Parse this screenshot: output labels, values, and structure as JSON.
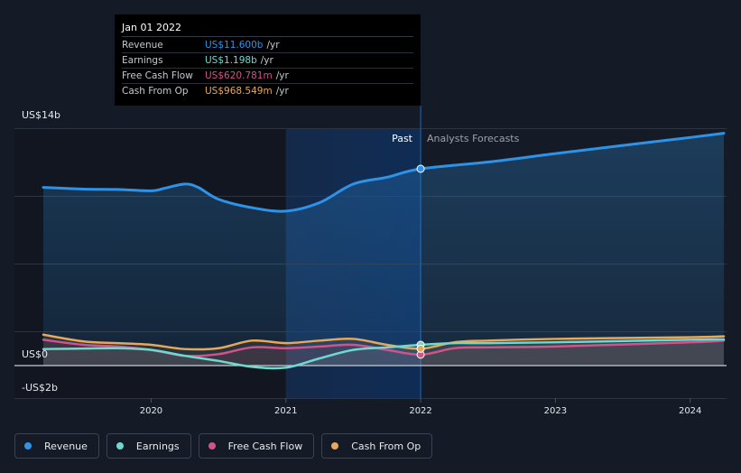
{
  "tooltip": {
    "date": "Jan 01 2022",
    "rows": [
      {
        "label": "Revenue",
        "value": "US$11.600b",
        "unit": "/yr",
        "color": "#2e93e6"
      },
      {
        "label": "Earnings",
        "value": "US$1.198b",
        "unit": "/yr",
        "color": "#6dd9cf"
      },
      {
        "label": "Free Cash Flow",
        "value": "US$620.781m",
        "unit": "/yr",
        "color": "#d0538c"
      },
      {
        "label": "Cash From Op",
        "value": "US$968.549m",
        "unit": "/yr",
        "color": "#e6a85a"
      }
    ]
  },
  "chart_data": {
    "type": "line",
    "x_ticks": [
      "2020",
      "2021",
      "2022",
      "2023",
      "2024"
    ],
    "y_ticks": [
      {
        "value": 14,
        "label": "US$14b"
      },
      {
        "value": 0,
        "label": "US$0"
      },
      {
        "value": -2,
        "label": "-US$2b"
      }
    ],
    "ylim": [
      -2,
      14
    ],
    "xlim": [
      2019.2,
      2024.27
    ],
    "past_label": "Past",
    "forecast_label": "Analysts Forecasts",
    "forecast_start": 2022.0,
    "highlight_range": [
      2021.0,
      2022.0
    ],
    "series": [
      {
        "name": "Revenue",
        "color": "#2e93e6",
        "points": [
          [
            2019.2,
            10.5
          ],
          [
            2019.5,
            10.4
          ],
          [
            2019.75,
            10.38
          ],
          [
            2020.0,
            10.3
          ],
          [
            2020.1,
            10.45
          ],
          [
            2020.25,
            10.7
          ],
          [
            2020.35,
            10.5
          ],
          [
            2020.5,
            9.8
          ],
          [
            2020.75,
            9.3
          ],
          [
            2021.0,
            9.1
          ],
          [
            2021.25,
            9.6
          ],
          [
            2021.5,
            10.7
          ],
          [
            2021.75,
            11.1
          ],
          [
            2022.0,
            11.6
          ],
          [
            2022.5,
            12.0
          ],
          [
            2023.0,
            12.5
          ],
          [
            2023.5,
            12.98
          ],
          [
            2024.0,
            13.45
          ],
          [
            2024.25,
            13.7
          ]
        ]
      },
      {
        "name": "Earnings",
        "color": "#6dd9cf",
        "points": [
          [
            2019.2,
            0.95
          ],
          [
            2019.5,
            0.98
          ],
          [
            2019.75,
            1.0
          ],
          [
            2020.0,
            0.9
          ],
          [
            2020.25,
            0.55
          ],
          [
            2020.5,
            0.25
          ],
          [
            2020.75,
            -0.1
          ],
          [
            2021.0,
            -0.15
          ],
          [
            2021.25,
            0.4
          ],
          [
            2021.5,
            0.9
          ],
          [
            2021.75,
            1.05
          ],
          [
            2022.0,
            1.2
          ],
          [
            2022.25,
            1.3
          ],
          [
            2022.5,
            1.3
          ],
          [
            2023.0,
            1.35
          ],
          [
            2024.0,
            1.5
          ],
          [
            2024.25,
            1.52
          ]
        ]
      },
      {
        "name": "Free Cash Flow",
        "color": "#d0538c",
        "points": [
          [
            2019.2,
            1.5
          ],
          [
            2019.5,
            1.2
          ],
          [
            2019.75,
            1.1
          ],
          [
            2020.0,
            0.9
          ],
          [
            2020.25,
            0.55
          ],
          [
            2020.5,
            0.65
          ],
          [
            2020.75,
            1.05
          ],
          [
            2021.0,
            1.0
          ],
          [
            2021.25,
            1.1
          ],
          [
            2021.5,
            1.2
          ],
          [
            2021.75,
            0.9
          ],
          [
            2022.0,
            0.62
          ],
          [
            2022.25,
            1.0
          ],
          [
            2022.5,
            1.05
          ],
          [
            2023.0,
            1.1
          ],
          [
            2024.0,
            1.35
          ],
          [
            2024.25,
            1.45
          ]
        ]
      },
      {
        "name": "Cash From Op",
        "color": "#e6a85a",
        "points": [
          [
            2019.2,
            1.8
          ],
          [
            2019.5,
            1.4
          ],
          [
            2019.75,
            1.3
          ],
          [
            2020.0,
            1.2
          ],
          [
            2020.25,
            0.95
          ],
          [
            2020.5,
            1.0
          ],
          [
            2020.75,
            1.45
          ],
          [
            2021.0,
            1.3
          ],
          [
            2021.25,
            1.45
          ],
          [
            2021.5,
            1.55
          ],
          [
            2021.75,
            1.2
          ],
          [
            2022.0,
            0.97
          ],
          [
            2022.25,
            1.35
          ],
          [
            2022.5,
            1.45
          ],
          [
            2023.0,
            1.55
          ],
          [
            2024.0,
            1.65
          ],
          [
            2024.25,
            1.7
          ]
        ]
      }
    ]
  },
  "legend": [
    {
      "label": "Revenue",
      "color": "#2e93e6"
    },
    {
      "label": "Earnings",
      "color": "#6dd9cf"
    },
    {
      "label": "Free Cash Flow",
      "color": "#d0538c"
    },
    {
      "label": "Cash From Op",
      "color": "#e6a85a"
    }
  ]
}
